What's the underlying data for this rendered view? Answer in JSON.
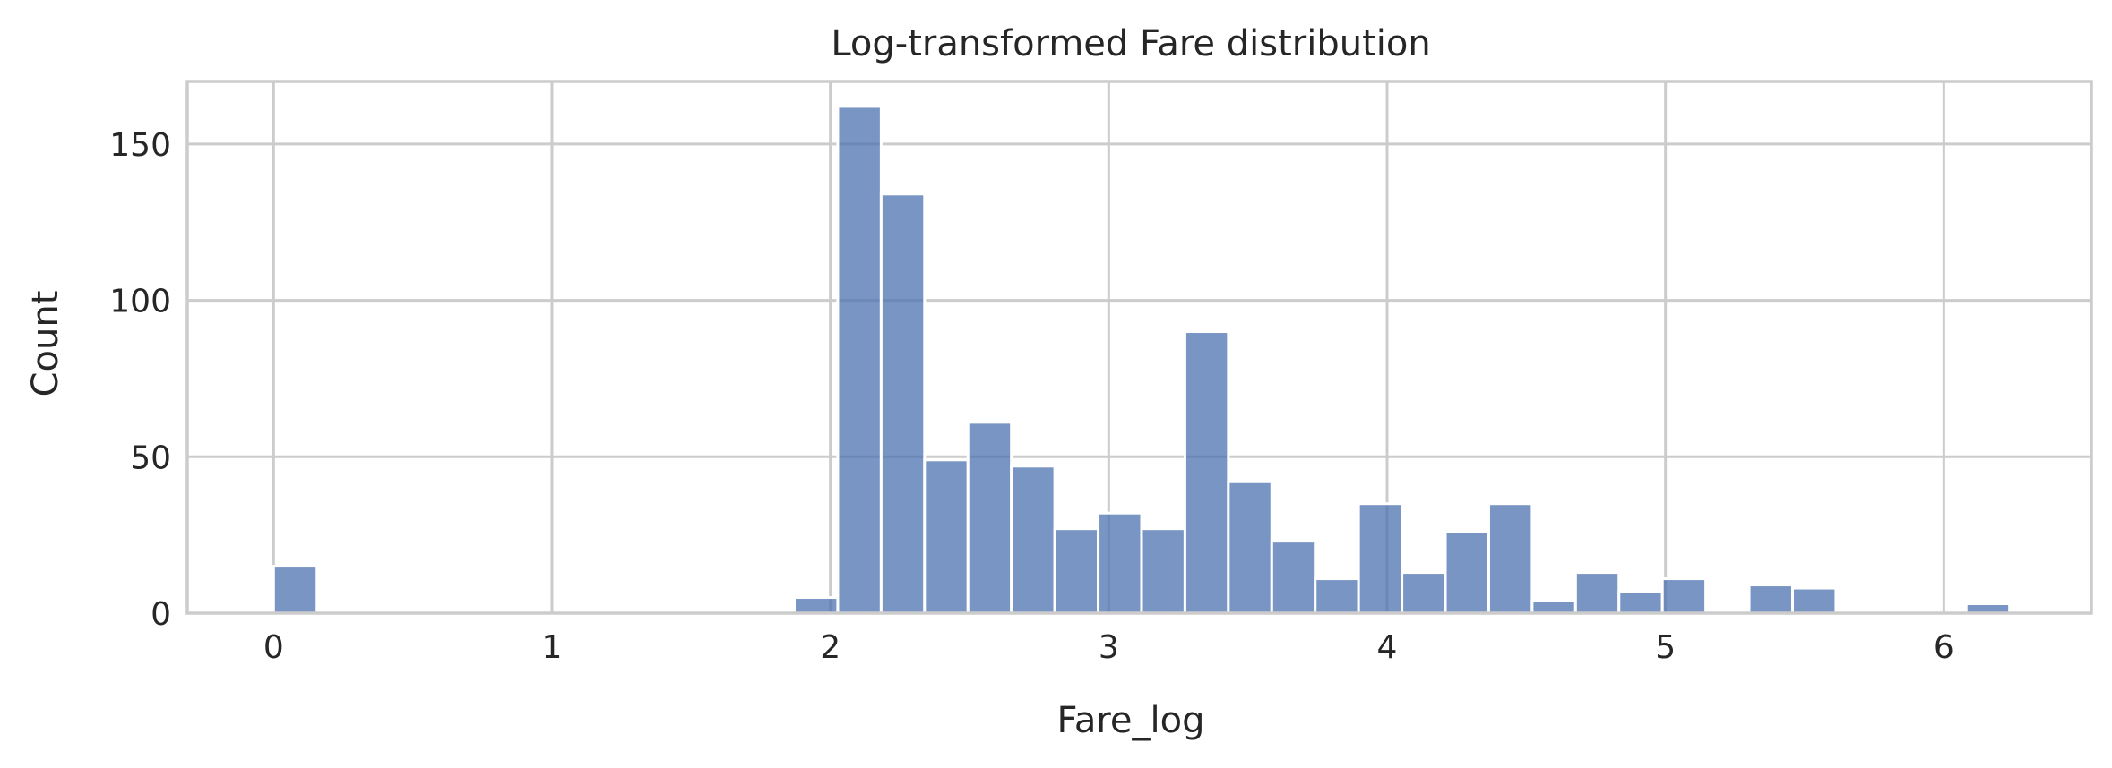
{
  "chart_data": {
    "type": "bar",
    "title": "Log-transformed Fare distribution",
    "xlabel": "Fare_log",
    "ylabel": "Count",
    "xlim": [
      -0.31,
      6.53
    ],
    "ylim": [
      0,
      170
    ],
    "xticks": [
      0,
      1,
      2,
      3,
      4,
      5,
      6
    ],
    "yticks": [
      0,
      50,
      100,
      150
    ],
    "grid": true,
    "bar_color": "#4c72b0",
    "bin_width": 0.1559,
    "bins": [
      {
        "x0": 0.0,
        "count": 15
      },
      {
        "x0": 0.1559,
        "count": 0
      },
      {
        "x0": 0.3118,
        "count": 0
      },
      {
        "x0": 0.4677,
        "count": 0
      },
      {
        "x0": 0.6236,
        "count": 0
      },
      {
        "x0": 0.7795,
        "count": 0
      },
      {
        "x0": 0.9354,
        "count": 0
      },
      {
        "x0": 1.0913,
        "count": 0
      },
      {
        "x0": 1.2472,
        "count": 0
      },
      {
        "x0": 1.4031,
        "count": 0
      },
      {
        "x0": 1.559,
        "count": 0
      },
      {
        "x0": 1.7149,
        "count": 0
      },
      {
        "x0": 1.8708,
        "count": 5
      },
      {
        "x0": 2.0267,
        "count": 162
      },
      {
        "x0": 2.1826,
        "count": 134
      },
      {
        "x0": 2.3385,
        "count": 49
      },
      {
        "x0": 2.4944,
        "count": 61
      },
      {
        "x0": 2.6503,
        "count": 47
      },
      {
        "x0": 2.8062,
        "count": 27
      },
      {
        "x0": 2.9621,
        "count": 32
      },
      {
        "x0": 3.118,
        "count": 27
      },
      {
        "x0": 3.2739,
        "count": 90
      },
      {
        "x0": 3.4298,
        "count": 42
      },
      {
        "x0": 3.5857,
        "count": 23
      },
      {
        "x0": 3.7416,
        "count": 11
      },
      {
        "x0": 3.8975,
        "count": 35
      },
      {
        "x0": 4.0534,
        "count": 13
      },
      {
        "x0": 4.2093,
        "count": 26
      },
      {
        "x0": 4.3652,
        "count": 35
      },
      {
        "x0": 4.5211,
        "count": 4
      },
      {
        "x0": 4.677,
        "count": 13
      },
      {
        "x0": 4.8329,
        "count": 7
      },
      {
        "x0": 4.9888,
        "count": 11
      },
      {
        "x0": 5.1447,
        "count": 0
      },
      {
        "x0": 5.3006,
        "count": 9
      },
      {
        "x0": 5.4565,
        "count": 8
      },
      {
        "x0": 5.6124,
        "count": 0
      },
      {
        "x0": 5.7683,
        "count": 0
      },
      {
        "x0": 5.9242,
        "count": 0
      },
      {
        "x0": 6.0801,
        "count": 3
      }
    ]
  }
}
